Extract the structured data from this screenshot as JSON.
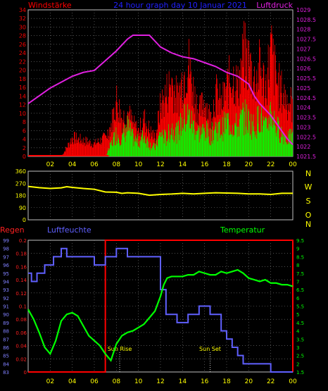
{
  "title": "24 hour graph day 10 Januar 2021",
  "colors": {
    "background": "#000000",
    "frame": "#c0c0c0",
    "grid": "#808080",
    "wind_gust": "#ff0000",
    "wind_avg": "#00ff00",
    "pressure": "#e020e0",
    "direction": "#ffff00",
    "rain": "#ff0000",
    "humidity": "#6060ff",
    "temperature": "#00ff00",
    "axis_tick_text": "#ffff00",
    "pressure_tick_text": "#e020e0",
    "rain_tick_text": "#ff2020",
    "humidity_tick_text": "#8080ff",
    "dir_letters": "#ffff00",
    "sun_text": "#ffff00"
  },
  "chart_data": [
    {
      "type": "bar+line",
      "name_left": "Windstärke",
      "name_right": "Luftdruck",
      "left_ticks": [
        0,
        2,
        4,
        6,
        8,
        10,
        12,
        14,
        16,
        18,
        20,
        22,
        24,
        26,
        28,
        30,
        32,
        34
      ],
      "right_ticks": [
        1021.5,
        1022,
        1022.5,
        1023,
        1023.5,
        1024,
        1024.5,
        1025,
        1025.5,
        1026,
        1026.5,
        1027,
        1027.5,
        1028,
        1028.5,
        1029
      ],
      "x_ticks": [
        "02",
        "04",
        "06",
        "08",
        "10",
        "12",
        "14",
        "16",
        "18",
        "20",
        "22",
        "00"
      ],
      "ylim_left": [
        0,
        34
      ],
      "ylim_right": [
        1021.5,
        1029
      ],
      "pressure": {
        "x": [
          0,
          1,
          2,
          3,
          4,
          5,
          6,
          7,
          8,
          9,
          9.5,
          10,
          11,
          11.5,
          12,
          13,
          14,
          15,
          16,
          17,
          18,
          19,
          20,
          20.5,
          21,
          21.5,
          22,
          22.5,
          23,
          23.5,
          24
        ],
        "y": [
          1024.2,
          1024.6,
          1025.0,
          1025.3,
          1025.6,
          1025.8,
          1025.9,
          1026.4,
          1026.9,
          1027.5,
          1027.7,
          1027.7,
          1027.7,
          1027.4,
          1027.1,
          1026.8,
          1026.6,
          1026.5,
          1026.3,
          1026.1,
          1025.8,
          1025.6,
          1025.2,
          1024.6,
          1024.2,
          1023.9,
          1023.6,
          1023.2,
          1022.8,
          1022.4,
          1022.1
        ]
      },
      "wind_gust_envelope": {
        "x": [
          0,
          3,
          4,
          5,
          6,
          7,
          7.5,
          8,
          8.5,
          9,
          9.5,
          10,
          10.5,
          11,
          11.5,
          12,
          12.5,
          13,
          13.5,
          14,
          14.5,
          15,
          15.5,
          16,
          16.5,
          17,
          17.5,
          18,
          18.5,
          19,
          19.5,
          20,
          20.5,
          21,
          21.5,
          22,
          22.5,
          23,
          23.5,
          24
        ],
        "y": [
          0,
          0,
          6,
          5,
          4,
          6,
          10,
          18,
          12,
          14,
          10,
          8,
          12,
          8,
          6,
          16,
          20,
          24,
          18,
          25,
          30,
          20,
          14,
          18,
          12,
          20,
          16,
          22,
          26,
          22,
          32,
          30,
          24,
          28,
          22,
          34,
          24,
          20,
          18,
          16
        ]
      },
      "wind_avg_envelope": {
        "x": [
          0,
          7,
          7.5,
          8,
          8.5,
          9,
          9.5,
          10,
          10.5,
          11,
          11.5,
          12,
          12.5,
          13,
          13.5,
          14,
          14.5,
          15,
          15.5,
          16,
          16.5,
          17,
          17.5,
          18,
          18.5,
          19,
          19.5,
          20,
          20.5,
          21,
          21.5,
          22,
          22.5,
          23,
          23.5,
          24
        ],
        "y": [
          0,
          0,
          4,
          8,
          6,
          10,
          6,
          5,
          7,
          4,
          3,
          8,
          6,
          10,
          8,
          12,
          14,
          10,
          8,
          9,
          7,
          10,
          9,
          12,
          11,
          10,
          14,
          12,
          10,
          14,
          9,
          16,
          10,
          8,
          6,
          7
        ]
      }
    },
    {
      "type": "line",
      "name": "Wind direction",
      "left_ticks": [
        0,
        90,
        180,
        270,
        360
      ],
      "right_labels": [
        "N",
        "W",
        "S",
        "O",
        "N"
      ],
      "ylim": [
        0,
        360
      ],
      "x": [
        0,
        1,
        2,
        3,
        3.5,
        4,
        5,
        6,
        7,
        8,
        8.5,
        9,
        10,
        11,
        12,
        13,
        14,
        15,
        16,
        17,
        18,
        19,
        20,
        21,
        22,
        23,
        24
      ],
      "y": [
        247,
        238,
        232,
        237,
        245,
        240,
        232,
        226,
        206,
        204,
        196,
        200,
        196,
        182,
        188,
        191,
        196,
        192,
        196,
        200,
        198,
        196,
        192,
        192,
        188,
        196,
        196
      ]
    },
    {
      "type": "line",
      "name_left": "Regen",
      "name_middle": "Luftfeuchte",
      "name_right": "Temperatur",
      "rain_ticks": [
        0,
        0.02,
        0.04,
        0.06,
        0.08,
        0.1,
        0.12,
        0.14,
        0.16,
        0.18,
        0.2
      ],
      "humidity_ticks": [
        83,
        84,
        85,
        86,
        87,
        88,
        89,
        90,
        91,
        92,
        93,
        94,
        95,
        96,
        97,
        98,
        99
      ],
      "temp_ticks": [
        1.5,
        2,
        2.5,
        3,
        3.5,
        4,
        4.5,
        5,
        5.5,
        6,
        6.5,
        7,
        7.5,
        8,
        8.5,
        9,
        9.5
      ],
      "x_ticks": [
        "02",
        "04",
        "06",
        "08",
        "10",
        "12",
        "14",
        "16",
        "18",
        "20",
        "22",
        "00"
      ],
      "sun_rise_label": "Sun Rise",
      "sun_set_label": "Sun Set",
      "sun_rise_hour": 8.3,
      "sun_set_hour": 16.5,
      "rain": {
        "x": [
          0,
          7,
          7,
          24,
          24
        ],
        "y": [
          0,
          0,
          0.2,
          0.2,
          0
        ]
      },
      "humidity": {
        "x": [
          0,
          0.3,
          0.3,
          0.8,
          0.8,
          1.5,
          1.5,
          2.3,
          2.3,
          3,
          3,
          3.5,
          3.5,
          4.5,
          4.5,
          6,
          6,
          7,
          7,
          8,
          8,
          9,
          9,
          12,
          12,
          12.5,
          12.5,
          13.5,
          13.5,
          14.5,
          14.5,
          15.5,
          15.5,
          16.5,
          16.5,
          17.5,
          17.5,
          18,
          18,
          18.5,
          18.5,
          19,
          19,
          19.5,
          19.5,
          20.5,
          20.5,
          22,
          22,
          23,
          23,
          24
        ],
        "y": [
          95,
          95,
          94,
          94,
          95,
          95,
          96,
          96,
          97,
          97,
          98,
          98,
          97,
          97,
          97,
          97,
          96,
          96,
          97,
          97,
          98,
          98,
          97,
          97,
          93,
          93,
          90,
          90,
          89,
          89,
          90,
          90,
          91,
          91,
          90,
          90,
          88,
          88,
          87,
          87,
          86,
          86,
          85,
          85,
          84,
          84,
          84,
          84,
          83,
          83,
          83,
          83
        ]
      },
      "temperature": {
        "x": [
          0,
          0.5,
          1,
          1.5,
          2,
          2.5,
          3,
          3.5,
          4,
          4.5,
          5,
          5.5,
          6,
          6.5,
          7,
          7.5,
          8,
          8.5,
          9,
          9.5,
          10,
          10.5,
          11,
          11.5,
          12,
          12.3,
          12.6,
          13,
          13.5,
          14,
          14.5,
          15,
          15.5,
          16,
          16.5,
          17,
          17.5,
          18,
          18.5,
          19,
          19.5,
          20,
          20.5,
          21,
          21.5,
          22,
          22.5,
          23,
          23.5,
          24
        ],
        "y": [
          5.3,
          4.7,
          3.9,
          3.0,
          2.6,
          3.4,
          4.6,
          5.0,
          5.1,
          4.9,
          4.3,
          3.7,
          3.4,
          3.1,
          2.6,
          2.2,
          3.2,
          3.7,
          3.9,
          4.0,
          4.2,
          4.4,
          4.8,
          5.2,
          6.1,
          6.8,
          7.2,
          7.3,
          7.3,
          7.3,
          7.4,
          7.4,
          7.6,
          7.5,
          7.4,
          7.4,
          7.6,
          7.5,
          7.6,
          7.7,
          7.5,
          7.2,
          7.1,
          7.0,
          7.1,
          6.9,
          6.9,
          6.8,
          6.8,
          6.7
        ]
      }
    }
  ]
}
